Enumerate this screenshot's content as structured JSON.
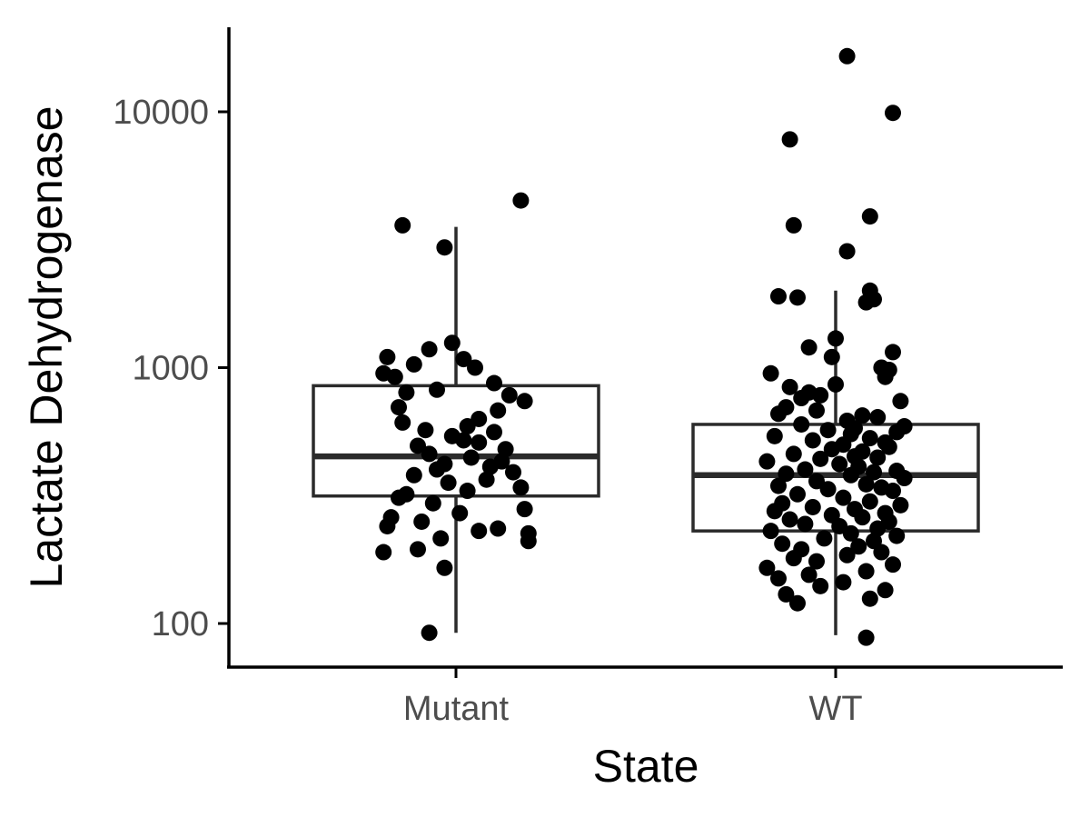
{
  "chart_data": {
    "type": "scatter",
    "subtype": "boxplot-with-jittered-points",
    "title": "",
    "xlabel": "State",
    "ylabel": "Lactate Dehydrogenase",
    "y_scale": "log10",
    "ylim": [
      70,
      20000
    ],
    "y_ticks": [
      100,
      1000,
      10000
    ],
    "y_tick_labels": [
      "100",
      "1000",
      "10000"
    ],
    "categories": [
      "Mutant",
      "WT"
    ],
    "grid": false,
    "legend": "none",
    "colors": {
      "points": "#000000",
      "box": "#2b2b2b",
      "axis": "#000000",
      "tick_text": "#4d4d4d"
    },
    "boxes": [
      {
        "category": "Mutant",
        "whisker_low": 92,
        "q1": 315,
        "median": 450,
        "q3": 850,
        "whisker_high": 3550
      },
      {
        "category": "WT",
        "whisker_low": 90,
        "q1": 230,
        "median": 380,
        "q3": 600,
        "whisker_high": 2000
      }
    ],
    "series": [
      {
        "category": "Mutant",
        "values": [
          4500,
          3600,
          2950,
          1250,
          1180,
          1100,
          1080,
          1030,
          1000,
          950,
          920,
          870,
          820,
          800,
          780,
          740,
          700,
          680,
          630,
          610,
          590,
          570,
          560,
          540,
          520,
          510,
          495,
          480,
          460,
          445,
          430,
          420,
          410,
          400,
          390,
          380,
          365,
          355,
          340,
          330,
          320,
          310,
          295,
          280,
          270,
          260,
          250,
          240,
          235,
          230,
          225,
          215,
          210,
          195,
          190,
          165,
          92
        ],
        "jitter": [
          0.17,
          -0.14,
          -0.03,
          -0.01,
          -0.07,
          -0.18,
          0.02,
          -0.11,
          0.05,
          -0.19,
          -0.16,
          0.1,
          -0.05,
          -0.13,
          0.14,
          0.18,
          -0.15,
          0.11,
          0.06,
          -0.14,
          0.03,
          -0.08,
          0.1,
          -0.01,
          0.02,
          0.06,
          -0.1,
          0.13,
          -0.07,
          0.04,
          0.12,
          -0.03,
          0.09,
          -0.05,
          0.15,
          -0.11,
          0.08,
          -0.02,
          0.17,
          0.03,
          -0.13,
          -0.15,
          -0.06,
          0.18,
          0.01,
          -0.17,
          -0.09,
          -0.18,
          0.11,
          0.06,
          0.19,
          -0.04,
          0.19,
          -0.1,
          -0.19,
          -0.03,
          -0.07
        ]
      },
      {
        "category": "WT",
        "values": [
          16500,
          9900,
          7800,
          3900,
          3600,
          2850,
          2000,
          1900,
          1880,
          1850,
          1800,
          1300,
          1200,
          1150,
          1100,
          1000,
          980,
          950,
          920,
          860,
          840,
          800,
          780,
          760,
          740,
          700,
          680,
          660,
          650,
          640,
          620,
          600,
          590,
          580,
          570,
          560,
          550,
          540,
          530,
          520,
          510,
          500,
          490,
          480,
          470,
          460,
          450,
          445,
          440,
          430,
          420,
          410,
          400,
          395,
          390,
          385,
          380,
          370,
          360,
          350,
          345,
          340,
          335,
          330,
          320,
          310,
          300,
          295,
          290,
          285,
          280,
          275,
          270,
          265,
          260,
          255,
          250,
          245,
          240,
          235,
          230,
          225,
          220,
          215,
          210,
          205,
          200,
          195,
          190,
          185,
          180,
          175,
          170,
          165,
          160,
          155,
          150,
          145,
          140,
          135,
          130,
          125,
          120,
          88
        ],
        "jitter": [
          0.03,
          0.15,
          -0.12,
          0.09,
          -0.11,
          0.03,
          0.09,
          -0.15,
          -0.1,
          0.1,
          0.08,
          0.0,
          -0.07,
          0.15,
          -0.01,
          0.12,
          0.14,
          -0.17,
          0.13,
          0.0,
          -0.12,
          -0.07,
          -0.04,
          -0.09,
          0.17,
          -0.13,
          -0.05,
          -0.15,
          0.07,
          0.11,
          0.03,
          -0.09,
          0.18,
          0.05,
          -0.02,
          0.16,
          0.04,
          -0.16,
          0.09,
          -0.06,
          0.13,
          0.02,
          0.14,
          -0.01,
          0.07,
          -0.11,
          0.05,
          0.11,
          -0.04,
          -0.18,
          0.01,
          0.06,
          -0.08,
          0.16,
          0.1,
          -0.13,
          0.04,
          0.18,
          -0.05,
          0.08,
          -0.15,
          0.12,
          -0.02,
          0.15,
          -0.1,
          0.02,
          0.09,
          -0.14,
          0.17,
          -0.06,
          0.05,
          -0.16,
          0.13,
          -0.01,
          0.07,
          -0.12,
          0.14,
          -0.08,
          0.01,
          0.11,
          -0.17,
          0.04,
          0.16,
          -0.03,
          0.1,
          -0.14,
          0.06,
          -0.09,
          0.12,
          0.03,
          -0.11,
          -0.05,
          0.15,
          -0.18,
          0.08,
          -0.07,
          -0.15,
          0.02,
          -0.04,
          0.13,
          -0.13,
          0.09,
          -0.1,
          0.08
        ]
      }
    ]
  }
}
